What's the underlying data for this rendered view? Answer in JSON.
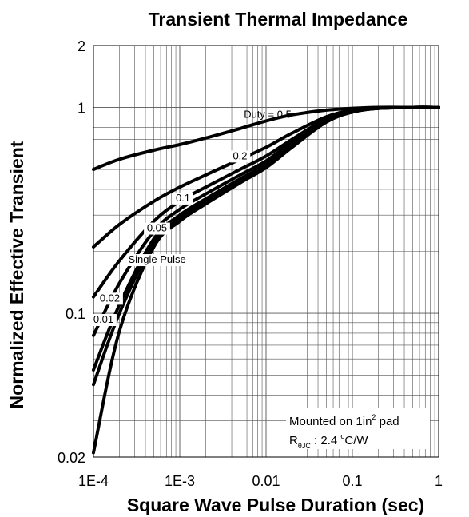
{
  "chart_data": {
    "type": "line",
    "title": "Transient Thermal Impedance",
    "xlabel": "Square Wave Pulse Duration (sec)",
    "ylabel": "Normalized Effective Transient",
    "x_scale": "log",
    "y_scale": "log",
    "xlim": [
      0.0001,
      1
    ],
    "ylim": [
      0.02,
      2
    ],
    "grid": true,
    "x_ticks": [
      "1E-4",
      "1E-3",
      "0.01",
      "0.1",
      "1"
    ],
    "y_ticks": [
      "0.02",
      "0.1",
      "1",
      "2"
    ],
    "series": [
      {
        "name": "Duty = 0.5",
        "x": [
          0.0001,
          0.0002,
          0.0005,
          0.001,
          0.002,
          0.005,
          0.01,
          0.02,
          0.05,
          0.1,
          0.2,
          0.5,
          1
        ],
        "y": [
          0.5,
          0.56,
          0.62,
          0.66,
          0.71,
          0.79,
          0.86,
          0.92,
          0.97,
          0.99,
          1.0,
          1.0,
          1.0
        ]
      },
      {
        "name": "0.2",
        "x": [
          0.0001,
          0.0002,
          0.0005,
          0.001,
          0.002,
          0.005,
          0.01,
          0.02,
          0.05,
          0.1,
          0.2,
          0.5,
          1
        ],
        "y": [
          0.21,
          0.27,
          0.35,
          0.41,
          0.47,
          0.56,
          0.64,
          0.75,
          0.9,
          0.97,
          0.99,
          1.0,
          1.0
        ]
      },
      {
        "name": "0.1",
        "x": [
          0.0001,
          0.0002,
          0.0005,
          0.001,
          0.002,
          0.005,
          0.01,
          0.02,
          0.05,
          0.1,
          0.2,
          0.5,
          1
        ],
        "y": [
          0.12,
          0.18,
          0.28,
          0.35,
          0.41,
          0.5,
          0.58,
          0.7,
          0.88,
          0.96,
          0.99,
          1.0,
          1.0
        ]
      },
      {
        "name": "0.05",
        "x": [
          0.0001,
          0.0002,
          0.0005,
          0.001,
          0.002,
          0.005,
          0.01,
          0.02,
          0.05,
          0.1,
          0.2,
          0.5,
          1
        ],
        "y": [
          0.078,
          0.14,
          0.25,
          0.32,
          0.38,
          0.47,
          0.55,
          0.68,
          0.87,
          0.96,
          0.99,
          1.0,
          1.0
        ]
      },
      {
        "name": "0.02",
        "x": [
          0.0001,
          0.0002,
          0.0005,
          0.001,
          0.002,
          0.005,
          0.01,
          0.02,
          0.05,
          0.1,
          0.2,
          0.5,
          1
        ],
        "y": [
          0.053,
          0.11,
          0.23,
          0.3,
          0.36,
          0.45,
          0.53,
          0.66,
          0.86,
          0.95,
          0.99,
          1.0,
          1.0
        ]
      },
      {
        "name": "0.01",
        "x": [
          0.0001,
          0.0002,
          0.0005,
          0.001,
          0.002,
          0.005,
          0.01,
          0.02,
          0.05,
          0.1,
          0.2,
          0.5,
          1
        ],
        "y": [
          0.045,
          0.1,
          0.22,
          0.29,
          0.35,
          0.44,
          0.52,
          0.65,
          0.85,
          0.95,
          0.99,
          1.0,
          1.0
        ]
      },
      {
        "name": "Single Pulse",
        "x": [
          0.0001,
          0.0002,
          0.0005,
          0.001,
          0.002,
          0.005,
          0.01,
          0.02,
          0.05,
          0.1,
          0.2,
          0.5,
          1
        ],
        "y": [
          0.021,
          0.082,
          0.21,
          0.28,
          0.34,
          0.43,
          0.51,
          0.64,
          0.85,
          0.95,
          0.99,
          1.0,
          1.0
        ]
      }
    ],
    "annotations": {
      "mount_text": "Mounted on 1in",
      "mount_sup": "2",
      "mount_suffix": " pad",
      "r_prefix": "R",
      "r_sub": "θJC",
      "r_value": " : 2.4 ",
      "r_deg": "o",
      "r_unit": "C/W"
    }
  }
}
